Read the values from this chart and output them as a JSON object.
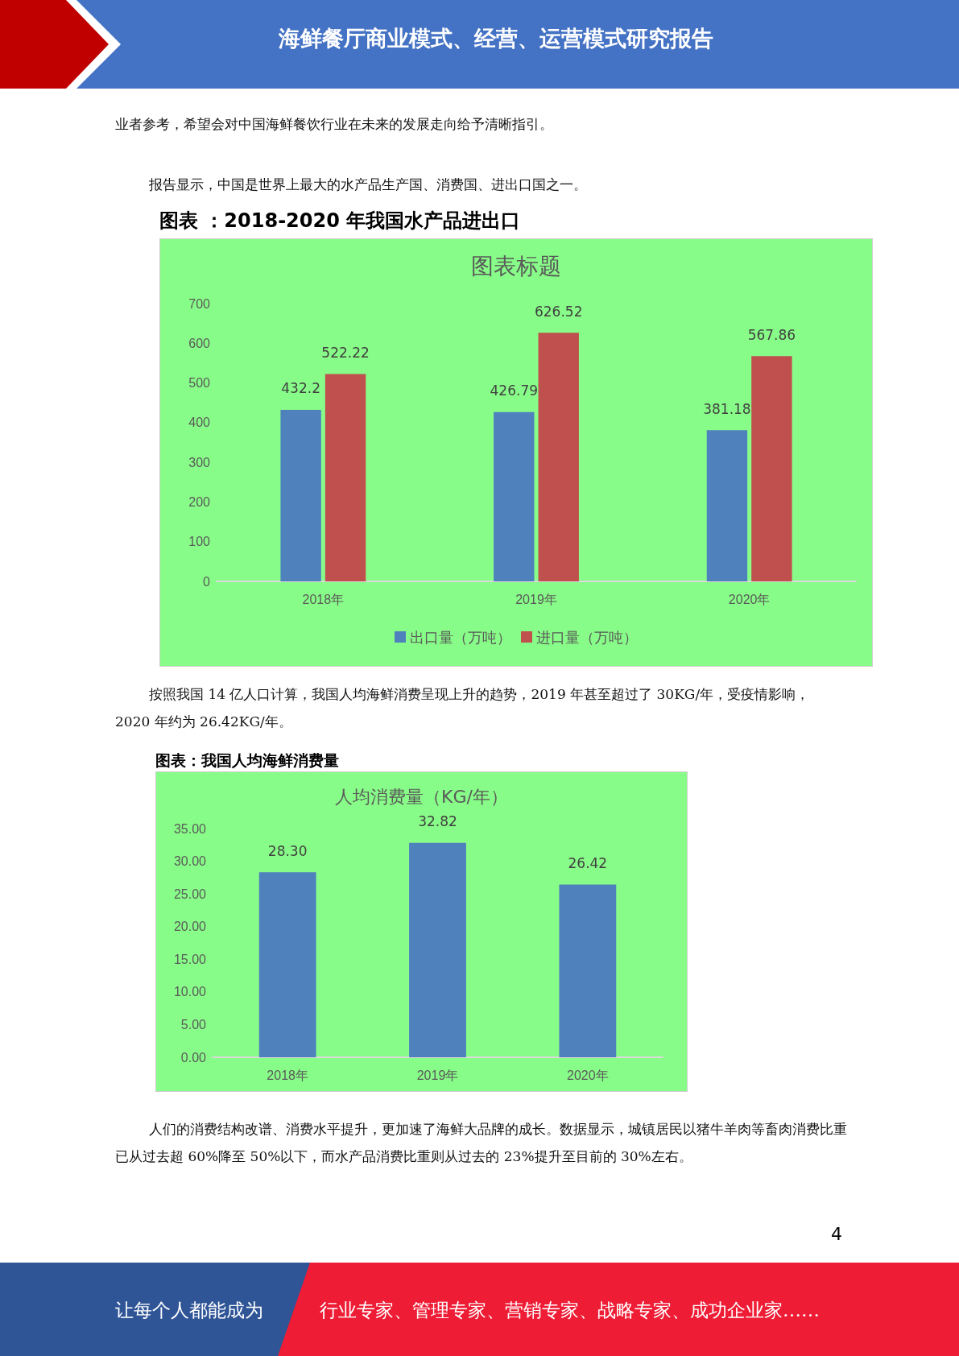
{
  "chart_data": [
    {
      "type": "bar",
      "title": "图表标题",
      "categories": [
        "2018年",
        "2019年",
        "2020年"
      ],
      "series": [
        {
          "name": "出口量（万吨）",
          "color": "#4f81bd",
          "values": [
            432.2,
            426.79,
            381.18
          ]
        },
        {
          "name": "进口量（万吨）",
          "color": "#c0504d",
          "values": [
            522.22,
            626.52,
            567.86
          ]
        }
      ],
      "ylim": [
        0,
        700
      ],
      "yticks": [
        0,
        100,
        200,
        300,
        400,
        500,
        600,
        700
      ],
      "grid": false,
      "legend": "bottom",
      "data_labels": true,
      "annotations": [
        "海鲜餐厅商业模式、经营、运营模式研究报告",
        "业者参考，希望会对中国海鲜餐饮行业在未来的发展走向给予清晰指引。",
        "报告显示，中国是世界上最大的水产品生产国、消费国、进出口国之一。",
        "图表 ：2018-2020 年我国水产品进出口"
      ]
    },
    {
      "type": "bar",
      "title": "人均消费量（KG/年）",
      "categories": [
        "2018年",
        "2019年",
        "2020年"
      ],
      "series": [
        {
          "color": "#4f81bd",
          "values": [
            28.3,
            32.82,
            26.42
          ],
          "value_labels": [
            "28.30",
            "32.82",
            "26.42"
          ]
        }
      ],
      "ylim": [
        0,
        35
      ],
      "yticks": [
        {
          "value": 0,
          "label": "0.00"
        },
        {
          "value": 5,
          "label": "5.00"
        },
        {
          "value": 10,
          "label": "10.00"
        },
        {
          "value": 15,
          "label": "15.00"
        },
        {
          "value": 20,
          "label": "20.00"
        },
        {
          "value": 25,
          "label": "25.00"
        },
        {
          "value": 30,
          "label": "30.00"
        },
        {
          "value": 35,
          "label": "35.00"
        }
      ],
      "grid": false,
      "annotations": [
        "按照我国 14 亿人口计算，我国人均海鲜消费呈现上升的趋势，2019 年甚至超过了 30KG/年，受疫情影响，2020 年约为 26.42KG/年。",
        "图表：我国人均海鲜消费量",
        "人们的消费结构改谱、消费水平提升，更加速了海鲜大品牌的成长。数据显示，城镇居民以猪牛羊肉等畜肉消费比重已从过去超 60%降至 50%以下，而水产品消费比重则从过去的 23%提升至目前的 30%左右。",
        "4",
        "让每个人都能成为",
        "行业专家、管理专家、营销专家、战略专家、成功企业家……"
      ]
    }
  ]
}
